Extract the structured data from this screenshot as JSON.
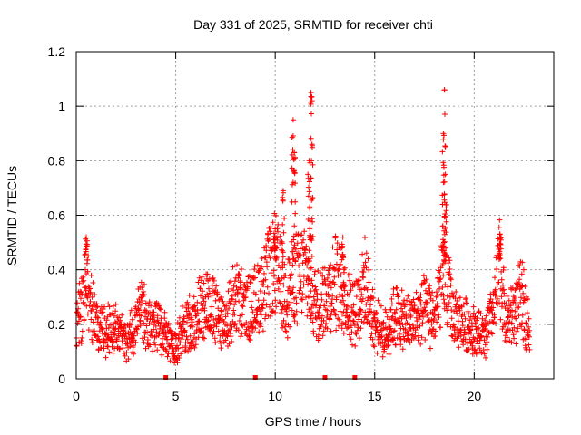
{
  "chart_data": {
    "type": "scatter",
    "title": "Day 331 of 2025, SRMTID for receiver chti",
    "xlabel": "GPS time / hours",
    "ylabel": "SRMTID / TECUs",
    "xlim": [
      0,
      24
    ],
    "ylim": [
      0,
      1.2
    ],
    "xticks": [
      "0",
      "5",
      "10",
      "15",
      "20"
    ],
    "xtick_values": [
      0,
      5,
      10,
      15,
      20
    ],
    "yticks": [
      "0",
      "0.2",
      "0.4",
      "0.6",
      "0.8",
      "1",
      "1.2"
    ],
    "ytick_values": [
      0,
      0.2,
      0.4,
      0.6,
      0.8,
      1.0,
      1.2
    ],
    "grid": true,
    "marker": "+",
    "marker_color": "#ff0000",
    "series": [
      {
        "name": "SRMTID",
        "trend": [
          [
            0.0,
            0.2
          ],
          [
            0.3,
            0.26
          ],
          [
            0.5,
            0.4
          ],
          [
            0.7,
            0.28
          ],
          [
            1.0,
            0.2
          ],
          [
            1.5,
            0.17
          ],
          [
            2.0,
            0.2
          ],
          [
            2.5,
            0.14
          ],
          [
            3.0,
            0.2
          ],
          [
            3.3,
            0.28
          ],
          [
            3.6,
            0.18
          ],
          [
            4.0,
            0.2
          ],
          [
            4.5,
            0.16
          ],
          [
            4.8,
            0.12
          ],
          [
            5.2,
            0.15
          ],
          [
            5.6,
            0.2
          ],
          [
            6.0,
            0.22
          ],
          [
            6.5,
            0.3
          ],
          [
            7.0,
            0.24
          ],
          [
            7.5,
            0.2
          ],
          [
            8.0,
            0.3
          ],
          [
            8.5,
            0.25
          ],
          [
            9.0,
            0.28
          ],
          [
            9.5,
            0.35
          ],
          [
            10.0,
            0.42
          ],
          [
            10.5,
            0.3
          ],
          [
            11.0,
            0.36
          ],
          [
            11.5,
            0.4
          ],
          [
            12.0,
            0.28
          ],
          [
            12.5,
            0.3
          ],
          [
            13.0,
            0.36
          ],
          [
            13.5,
            0.3
          ],
          [
            14.0,
            0.25
          ],
          [
            14.5,
            0.35
          ],
          [
            15.0,
            0.2
          ],
          [
            15.5,
            0.16
          ],
          [
            16.0,
            0.24
          ],
          [
            16.5,
            0.2
          ],
          [
            17.0,
            0.22
          ],
          [
            17.5,
            0.25
          ],
          [
            18.0,
            0.22
          ],
          [
            18.5,
            0.38
          ],
          [
            19.0,
            0.22
          ],
          [
            19.5,
            0.2
          ],
          [
            20.0,
            0.18
          ],
          [
            20.5,
            0.15
          ],
          [
            21.0,
            0.25
          ],
          [
            21.3,
            0.42
          ],
          [
            21.6,
            0.2
          ],
          [
            22.0,
            0.25
          ],
          [
            22.4,
            0.3
          ],
          [
            22.8,
            0.18
          ]
        ],
        "peaks": [
          {
            "x": 0.5,
            "y": 0.52
          },
          {
            "x": 10.0,
            "y": 0.55
          },
          {
            "x": 10.4,
            "y": 0.69
          },
          {
            "x": 10.9,
            "y": 0.95
          },
          {
            "x": 10.95,
            "y": 0.83
          },
          {
            "x": 11.7,
            "y": 0.8
          },
          {
            "x": 11.8,
            "y": 1.05
          },
          {
            "x": 11.85,
            "y": 0.86
          },
          {
            "x": 13.4,
            "y": 0.52
          },
          {
            "x": 18.5,
            "y": 1.06
          },
          {
            "x": 18.45,
            "y": 0.9
          },
          {
            "x": 18.55,
            "y": 0.75
          },
          {
            "x": 21.3,
            "y": 0.53
          }
        ]
      }
    ],
    "gap_markers_x": [
      4.5,
      9.0,
      12.5,
      14.0
    ]
  }
}
